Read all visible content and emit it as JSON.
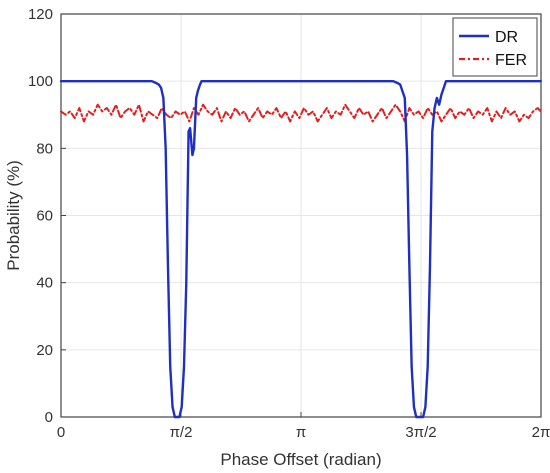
{
  "chart_data": {
    "type": "line",
    "title": "",
    "xlabel": "Phase Offset (radian)",
    "ylabel": "Probability (%)",
    "xlim": [
      0,
      6.283185307179586
    ],
    "ylim": [
      0,
      120
    ],
    "grid": true,
    "legend_placement": "top-right",
    "x_ticks": [
      {
        "value": 0,
        "label": "0"
      },
      {
        "value": 1.5707963267948966,
        "label": "π/2"
      },
      {
        "value": 3.141592653589793,
        "label": "π"
      },
      {
        "value": 4.71238898038469,
        "label": "3π/2"
      },
      {
        "value": 6.283185307179586,
        "label": "2π"
      }
    ],
    "y_ticks": [
      {
        "value": 0,
        "label": "0"
      },
      {
        "value": 20,
        "label": "20"
      },
      {
        "value": 40,
        "label": "40"
      },
      {
        "value": 60,
        "label": "60"
      },
      {
        "value": 80,
        "label": "80"
      },
      {
        "value": 100,
        "label": "100"
      },
      {
        "value": 120,
        "label": "120"
      }
    ],
    "series": [
      {
        "name": "DR",
        "color": "#1f2fbf",
        "style": "solid",
        "x": [
          0.0,
          1.19,
          1.24,
          1.28,
          1.31,
          1.34,
          1.37,
          1.4,
          1.43,
          1.46,
          1.49,
          1.52,
          1.55,
          1.58,
          1.61,
          1.64,
          1.67,
          1.69,
          1.72,
          1.74,
          1.77,
          1.79,
          1.82,
          1.84,
          1.86,
          1.89,
          1.93,
          1.98,
          2.02,
          4.35,
          4.4,
          4.44,
          4.47,
          4.5,
          4.53,
          4.56,
          4.59,
          4.62,
          4.65,
          4.68,
          4.71,
          4.74,
          4.77,
          4.8,
          4.83,
          4.86,
          4.89,
          4.92,
          4.95,
          4.98,
          5.01,
          5.04,
          5.07,
          5.1,
          5.14,
          6.28
        ],
        "y": [
          100,
          100,
          99.5,
          99,
          98,
          95,
          80,
          45,
          15,
          3,
          0,
          0,
          0,
          3,
          15,
          40,
          85,
          86,
          78,
          80,
          95,
          97,
          99,
          100,
          100,
          100,
          100,
          100,
          100,
          100,
          99.5,
          99,
          97,
          95,
          78,
          45,
          15,
          3,
          0,
          0,
          0,
          0,
          3,
          15,
          45,
          85,
          92,
          95,
          93,
          96,
          98,
          100,
          100,
          100,
          100,
          100
        ]
      },
      {
        "name": "FER",
        "color": "#e02020",
        "style": "dashdot",
        "x": [
          0.0,
          0.06,
          0.12,
          0.18,
          0.24,
          0.3,
          0.36,
          0.42,
          0.48,
          0.54,
          0.6,
          0.66,
          0.72,
          0.78,
          0.84,
          0.9,
          0.96,
          1.02,
          1.08,
          1.14,
          1.2,
          1.26,
          1.32,
          1.38,
          1.44,
          1.5,
          1.56,
          1.62,
          1.68,
          1.74,
          1.8,
          1.86,
          1.92,
          1.98,
          2.04,
          2.1,
          2.16,
          2.22,
          2.28,
          2.34,
          2.4,
          2.46,
          2.52,
          2.58,
          2.64,
          2.7,
          2.76,
          2.82,
          2.88,
          2.94,
          3.0,
          3.06,
          3.12,
          3.18,
          3.24,
          3.3,
          3.36,
          3.42,
          3.48,
          3.54,
          3.6,
          3.66,
          3.72,
          3.78,
          3.84,
          3.9,
          3.96,
          4.02,
          4.08,
          4.14,
          4.2,
          4.26,
          4.32,
          4.38,
          4.44,
          4.5,
          4.56,
          4.62,
          4.68,
          4.74,
          4.8,
          4.86,
          4.92,
          4.98,
          5.04,
          5.1,
          5.16,
          5.22,
          5.28,
          5.34,
          5.4,
          5.46,
          5.52,
          5.58,
          5.64,
          5.7,
          5.76,
          5.82,
          5.88,
          5.94,
          6.0,
          6.06,
          6.12,
          6.18,
          6.24,
          6.28
        ],
        "y": [
          91,
          90,
          91,
          89,
          92,
          88,
          91,
          90,
          93,
          91,
          92,
          90,
          93,
          89,
          91,
          92,
          90,
          93,
          88,
          91,
          90,
          89,
          92,
          90,
          89,
          91,
          90,
          91,
          88,
          92,
          90,
          93,
          91,
          90,
          92,
          88,
          91,
          89,
          92,
          90,
          91,
          88,
          90,
          92,
          89,
          91,
          90,
          92,
          89,
          91,
          88,
          91,
          89,
          92,
          90,
          91,
          88,
          90,
          92,
          89,
          91,
          90,
          93,
          91,
          89,
          92,
          90,
          91,
          88,
          90,
          92,
          89,
          91,
          93,
          91,
          88,
          92,
          90,
          91,
          89,
          92,
          90,
          91,
          88,
          90,
          92,
          89,
          91,
          90,
          92,
          89,
          91,
          90,
          92,
          88,
          91,
          89,
          92,
          90,
          91,
          88,
          90,
          89,
          91,
          92,
          91
        ]
      }
    ]
  }
}
